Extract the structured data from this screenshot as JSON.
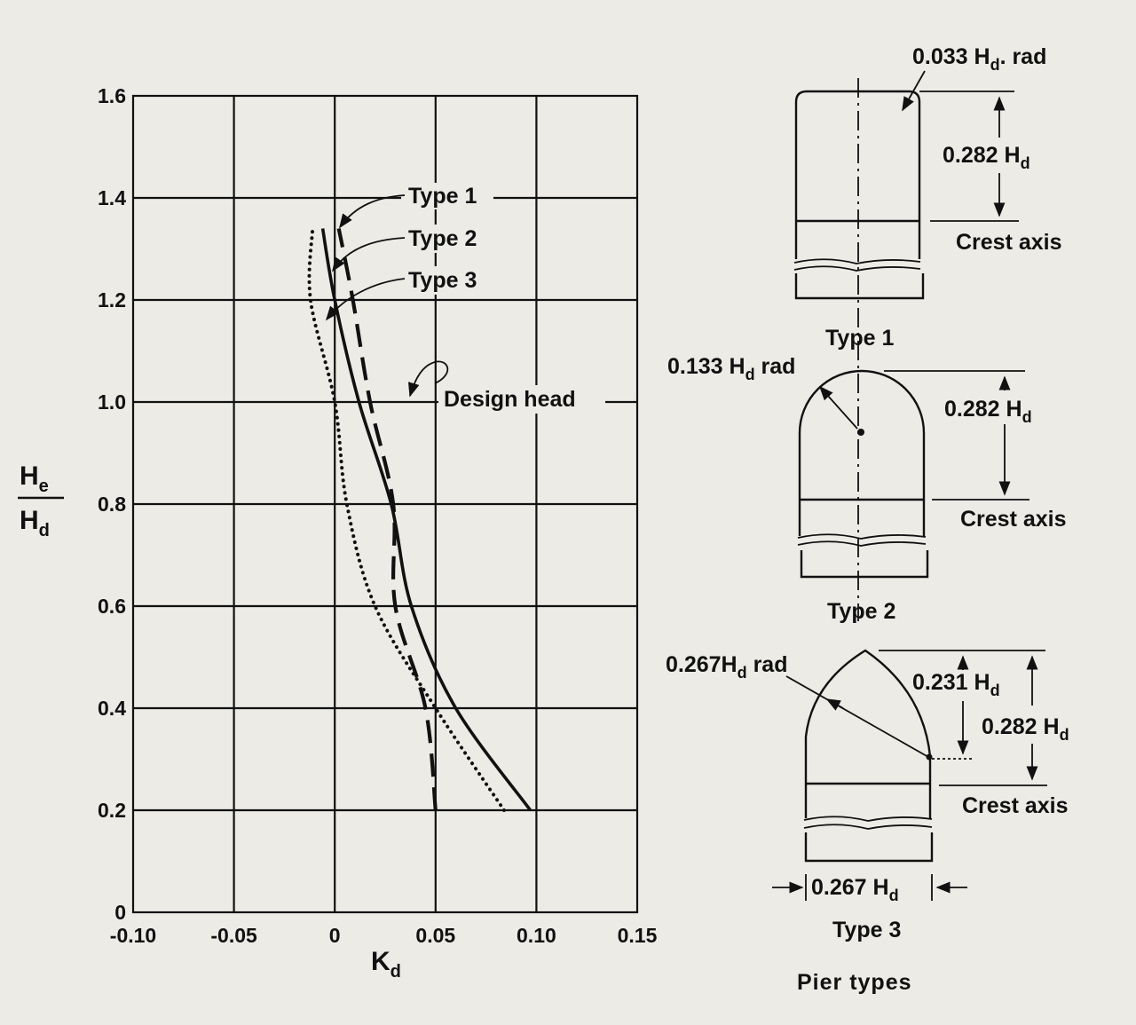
{
  "colors": {
    "background": "#ecebe6",
    "ink": "#111111"
  },
  "chart_data": {
    "type": "line",
    "xlabel": "K",
    "xlabel_sub": "d",
    "ylabel_num": "H",
    "ylabel_num_sub": "e",
    "ylabel_den": "H",
    "ylabel_den_sub": "d",
    "xlim": [
      -0.1,
      0.15
    ],
    "ylim": [
      0,
      1.6
    ],
    "grid": true,
    "x_ticks": [
      -0.1,
      -0.05,
      0,
      0.05,
      0.1,
      0.15
    ],
    "x_tick_labels": [
      "-0.10",
      "-0.05",
      "0",
      "0.05",
      "0.10",
      "0.15"
    ],
    "y_ticks": [
      0,
      0.2,
      0.4,
      0.6,
      0.8,
      1.0,
      1.2,
      1.4,
      1.6
    ],
    "y_tick_labels": [
      "0",
      "0.2",
      "0.4",
      "0.6",
      "0.8",
      "1.0",
      "1.2",
      "1.4",
      "1.6"
    ],
    "series": [
      {
        "name": "Type 1",
        "style": "dashed",
        "points": [
          [
            0.05,
            0.2
          ],
          [
            0.045,
            0.4
          ],
          [
            0.03,
            0.6
          ],
          [
            0.029,
            0.8
          ],
          [
            0.0175,
            1.0
          ],
          [
            0.009,
            1.2
          ],
          [
            0.002,
            1.34
          ]
        ]
      },
      {
        "name": "Type 2",
        "style": "solid",
        "points": [
          [
            0.097,
            0.2
          ],
          [
            0.06,
            0.4
          ],
          [
            0.038,
            0.6
          ],
          [
            0.028,
            0.8
          ],
          [
            0.012,
            1.0
          ],
          [
            0.0,
            1.2
          ],
          [
            -0.006,
            1.34
          ]
        ]
      },
      {
        "name": "Type 3",
        "style": "dotted",
        "points": [
          [
            0.084,
            0.2
          ],
          [
            0.05,
            0.4
          ],
          [
            0.02,
            0.6
          ],
          [
            0.006,
            0.8
          ],
          [
            0.0,
            1.0
          ],
          [
            -0.012,
            1.2
          ],
          [
            -0.011,
            1.34
          ]
        ]
      }
    ],
    "annotations": {
      "type1": "Type 1",
      "type2": "Type 2",
      "type3": "Type 3",
      "design_head": "Design head"
    }
  },
  "pier_diagram": {
    "title": "Pier types",
    "type1": {
      "caption": "Type 1",
      "radius_label": "0.033 H",
      "radius_label_sub": "d",
      "radius_label_suffix": ". rad",
      "height_label": "0.282 H",
      "height_label_sub": "d",
      "crest_label": "Crest axis"
    },
    "type2": {
      "caption": "Type 2",
      "radius_label": "0.133 H",
      "radius_label_sub": "d",
      "radius_label_suffix": " rad",
      "height_label": "0.282 H",
      "height_label_sub": "d",
      "crest_label": "Crest axis"
    },
    "type3": {
      "caption": "Type 3",
      "radius_label": "0.267H",
      "radius_label_sub": "d",
      "radius_label_suffix": " rad",
      "inner_label": "0.231 H",
      "inner_label_sub": "d",
      "height_label": "0.282 H",
      "height_label_sub": "d",
      "crest_label": "Crest axis",
      "width_label": "0.267 H",
      "width_label_sub": "d"
    }
  }
}
